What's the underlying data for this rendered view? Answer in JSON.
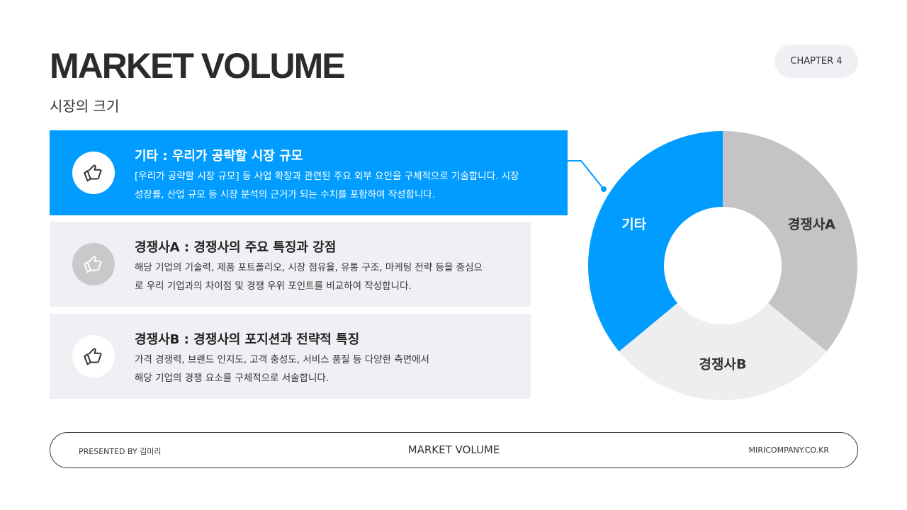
{
  "header": {
    "title": "MARKET VOLUME",
    "subtitle": "시장의 크기",
    "chapter": "CHAPTER 4"
  },
  "cards": [
    {
      "title": "기타 : 우리가 공략할 시장 규모",
      "lines": [
        "[우리가 공략할 시장 규모] 등 사업 확장과 관련된 주요 외부 요인을 구체적으로 기술합니다. 시장",
        "성장률, 산업 규모 등 시장 분석의 근거가 되는 수치를 포함하여 작성합니다."
      ],
      "icon": "thumbs-up-icon"
    },
    {
      "title": "경쟁사A : 경쟁사의 주요 특징과 강점",
      "lines": [
        "해당 기업의 기술력, 제품 포트폴리오, 시장 점유율, 유통 구조, 마케팅 전략 등을 중심으",
        "로 우리 기업과의 차이점 및 경쟁 우위 포인트를 비교하여 작성합니다."
      ],
      "icon": "thumbs-up-icon"
    },
    {
      "title": "경쟁사B : 경쟁사의 포지션과 전략적 특징",
      "lines": [
        "가격 경쟁력, 브랜드 인지도, 고객 충성도, 서비스 품질 등 다양한 측면에서",
        "해당 기업의 경쟁 요소를 구체적으로 서술합니다."
      ],
      "icon": "thumbs-up-icon"
    }
  ],
  "chart_data": {
    "type": "pie",
    "donut": true,
    "categories": [
      "경쟁사A",
      "경쟁사B",
      "기타"
    ],
    "values": [
      36,
      28,
      36
    ],
    "colors": [
      "#c4c4c6",
      "#eeeef0",
      "#009cff"
    ],
    "label_colors": [
      "#333333",
      "#333333",
      "#ffffff"
    ],
    "highlight": "기타"
  },
  "footer": {
    "left": "PRESENTED BY 김미리",
    "center": "MARKET VOLUME",
    "right": "MIRICOMPANY.CO.KR"
  }
}
